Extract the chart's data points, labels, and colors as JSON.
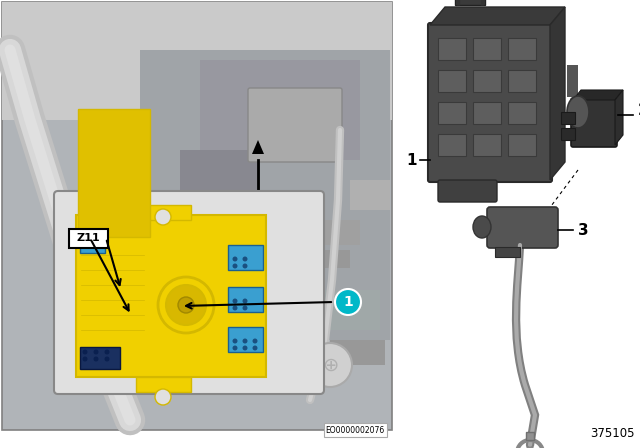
{
  "background_color": "#ffffff",
  "diagram_number": "375105",
  "eo_code": "EO0000002076",
  "label_z11": "Z11",
  "callout_1_color": "#00b8c8",
  "yellow": "#f0d000",
  "yellow_dark": "#d4b800",
  "blue_conn": "#3a9fd0",
  "blue_dark": "#1a6090",
  "dark_gray": "#4a4a4a",
  "mid_gray": "#888888",
  "light_gray": "#c8c8c8",
  "photo_bg": "#b8b8b8",
  "photo_border": "#909090",
  "inset_bg": "#e0e0e0",
  "inset_border": "#888888",
  "part2_color": "#383838",
  "part3_color": "#555555",
  "cable_color": "#909090"
}
